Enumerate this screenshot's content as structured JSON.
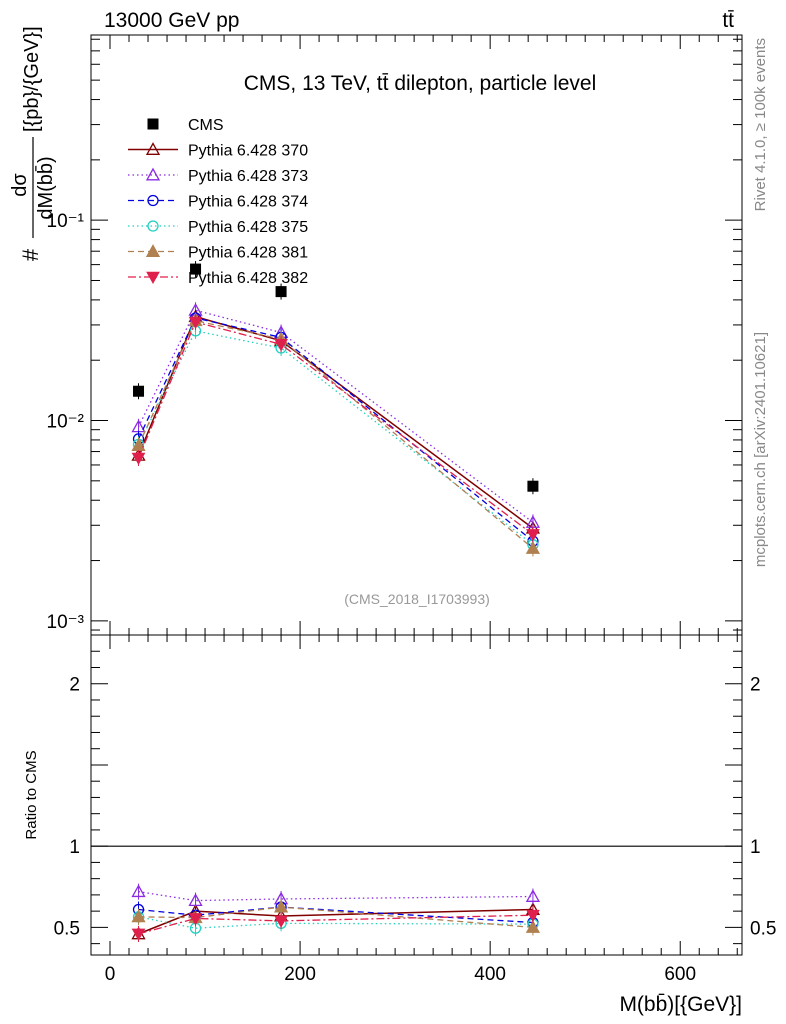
{
  "header": {
    "left": "13000 GeV pp",
    "right": "tt̄"
  },
  "side_text": {
    "rivet": "Rivet 4.1.0, ≥ 100k events",
    "mcplots": "mcplots.cern.ch [arXiv:2401.10621]"
  },
  "colors": {
    "CMS": "#000000",
    "p370": "#800000",
    "p373": "#8a2be2",
    "p374": "#0000e0",
    "p375": "#20d0c0",
    "p381": "#b08050",
    "p382": "#e0204c"
  },
  "chart_data": [
    {
      "type": "line",
      "title": "CMS, 13 TeV, tt̄ dilepton, particle level",
      "watermark": "(CMS_2018_I1703993)",
      "ylabel_num": "dσ",
      "ylabel_den": "dM(bb̄)",
      "ylabel_prefix": "#",
      "ylabel_units": "[{pb}/{GeV}]",
      "yscale": "log",
      "xlim": [
        -20,
        665
      ],
      "ylim": [
        0.00085,
        0.84
      ],
      "yticks": [
        {
          "value": 0.1,
          "label": "10⁻¹"
        },
        {
          "value": 0.01,
          "label": "10⁻²"
        },
        {
          "value": 0.001,
          "label": "10⁻³"
        }
      ],
      "legend_position": "top-left",
      "x": [
        30,
        90,
        180,
        445
      ],
      "series": [
        {
          "name": "CMS",
          "key": "CMS",
          "marker": "square",
          "line": "none",
          "values": [
            0.014,
            0.057,
            0.044,
            0.0047
          ]
        },
        {
          "name": "Pythia 6.428 370",
          "key": "p370",
          "marker": "triangle-up-open",
          "line": "solid",
          "values": [
            0.0067,
            0.033,
            0.025,
            0.0029
          ]
        },
        {
          "name": "Pythia 6.428 373",
          "key": "p373",
          "marker": "triangle-up-open",
          "line": "dotted",
          "values": [
            0.0093,
            0.0355,
            0.0275,
            0.0031
          ]
        },
        {
          "name": "Pythia 6.428 374",
          "key": "p374",
          "marker": "circle-open",
          "line": "dashed",
          "values": [
            0.0081,
            0.0325,
            0.026,
            0.0025
          ]
        },
        {
          "name": "Pythia 6.428 375",
          "key": "p375",
          "marker": "circle-open",
          "line": "dotted",
          "values": [
            0.0076,
            0.028,
            0.023,
            0.0024
          ]
        },
        {
          "name": "Pythia 6.428 381",
          "key": "p381",
          "marker": "triangle-up-filled",
          "line": "dashed",
          "values": [
            0.0075,
            0.0315,
            0.0255,
            0.0023
          ]
        },
        {
          "name": "Pythia 6.428 382",
          "key": "p382",
          "marker": "triangle-down-filled",
          "line": "dashdot",
          "values": [
            0.0065,
            0.031,
            0.024,
            0.0027
          ]
        }
      ]
    },
    {
      "type": "line",
      "ylabel": "Ratio to CMS",
      "xlabel": "M(bb̄)[{GeV}]",
      "xlim": [
        -20,
        665
      ],
      "ylim": [
        0.33,
        2.3
      ],
      "xticks": [
        0,
        200,
        400,
        600
      ],
      "yticks": [
        0.5,
        1,
        2
      ],
      "reference_line": 1,
      "x": [
        30,
        90,
        180,
        445
      ],
      "series": [
        {
          "name": "Pythia 6.428 370",
          "key": "p370",
          "marker": "triangle-up-open",
          "line": "solid",
          "values": [
            0.46,
            0.6,
            0.57,
            0.61
          ]
        },
        {
          "name": "Pythia 6.428 373",
          "key": "p373",
          "marker": "triangle-up-open",
          "line": "dotted",
          "values": [
            0.72,
            0.665,
            0.675,
            0.69
          ]
        },
        {
          "name": "Pythia 6.428 374",
          "key": "p374",
          "marker": "circle-open",
          "line": "dashed",
          "values": [
            0.61,
            0.575,
            0.625,
            0.53
          ]
        },
        {
          "name": "Pythia 6.428 375",
          "key": "p375",
          "marker": "circle-open",
          "line": "dotted",
          "values": [
            0.565,
            0.495,
            0.525,
            0.52
          ]
        },
        {
          "name": "Pythia 6.428 381",
          "key": "p381",
          "marker": "triangle-up-filled",
          "line": "dashed",
          "values": [
            0.565,
            0.56,
            0.625,
            0.5
          ]
        },
        {
          "name": "Pythia 6.428 382",
          "key": "p382",
          "marker": "triangle-down-filled",
          "line": "dashdot",
          "values": [
            0.46,
            0.555,
            0.54,
            0.575
          ]
        }
      ]
    }
  ]
}
